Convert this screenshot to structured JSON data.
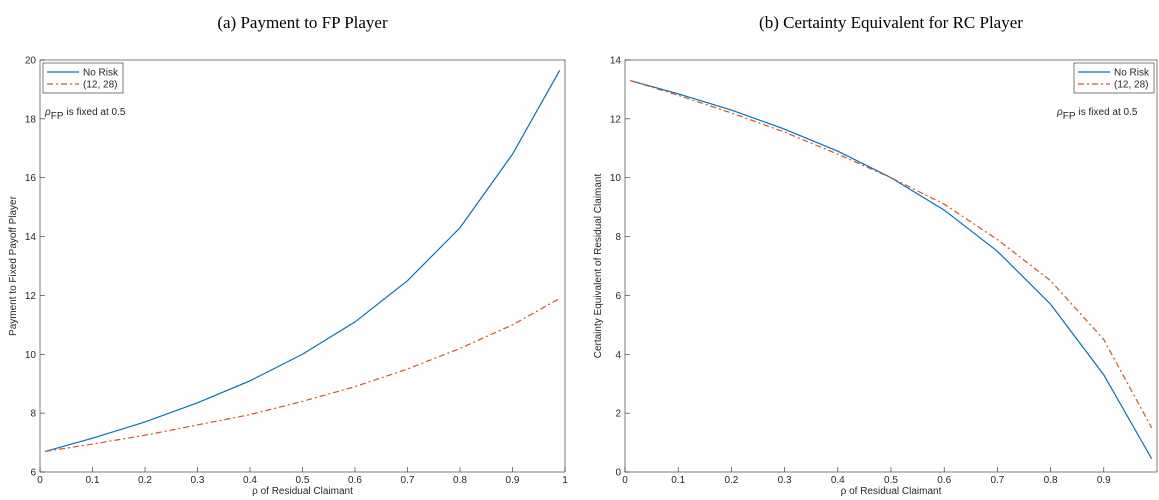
{
  "chart_data": [
    {
      "type": "line",
      "title": "(a) Payment to FP Player",
      "xlabel": "ρ of Residual Claimant",
      "ylabel": "Payment to Fixed Payoff Player",
      "annotation_symbol": "ρ",
      "annotation_subscript": "FP",
      "annotation_text": "is fixed at 0.5",
      "legend": "upper left",
      "x": [
        0.01,
        0.1,
        0.2,
        0.3,
        0.4,
        0.5,
        0.6,
        0.7,
        0.8,
        0.9,
        0.99
      ],
      "series": [
        {
          "name": "No Risk",
          "color": "#0072bd",
          "dash": false,
          "values": [
            6.7,
            7.15,
            7.7,
            8.35,
            9.1,
            10.0,
            11.1,
            12.5,
            14.3,
            16.8,
            19.65
          ]
        },
        {
          "name": "(12, 28)",
          "color": "#d95319",
          "dash": true,
          "values": [
            6.7,
            6.95,
            7.25,
            7.6,
            7.95,
            8.4,
            8.9,
            9.5,
            10.2,
            11.0,
            11.9
          ]
        }
      ],
      "xlim": [
        0,
        1
      ],
      "xticks": [
        0,
        0.1,
        0.2,
        0.3,
        0.4,
        0.5,
        0.6,
        0.7,
        0.8,
        0.9,
        1
      ],
      "ylim": [
        6,
        20
      ],
      "yticks": [
        6,
        8,
        10,
        12,
        14,
        16,
        18,
        20
      ]
    },
    {
      "type": "line",
      "title": "(b) Certainty Equivalent for RC Player",
      "xlabel": "ρ of Residual Claimant",
      "ylabel": "Certainty Equivalent of Residual Claimant",
      "annotation_symbol": "ρ",
      "annotation_subscript": "FP",
      "annotation_text": "is fixed at 0.5",
      "legend": "upper right",
      "x": [
        0.01,
        0.1,
        0.2,
        0.3,
        0.4,
        0.5,
        0.6,
        0.7,
        0.8,
        0.9,
        0.99
      ],
      "series": [
        {
          "name": "No Risk",
          "color": "#0072bd",
          "dash": false,
          "values": [
            13.3,
            12.85,
            12.3,
            11.65,
            10.9,
            10.0,
            8.9,
            7.5,
            5.7,
            3.3,
            0.45
          ]
        },
        {
          "name": "(12, 28)",
          "color": "#d95319",
          "dash": true,
          "values": [
            13.3,
            12.8,
            12.2,
            11.55,
            10.8,
            10.0,
            9.1,
            7.9,
            6.5,
            4.5,
            1.5
          ]
        }
      ],
      "xlim": [
        0,
        1
      ],
      "xticks": [
        0,
        0.1,
        0.2,
        0.3,
        0.4,
        0.5,
        0.6,
        0.7,
        0.8,
        0.9
      ],
      "ylim": [
        0,
        14
      ],
      "yticks": [
        0,
        2,
        4,
        6,
        8,
        10,
        12,
        14
      ]
    }
  ]
}
